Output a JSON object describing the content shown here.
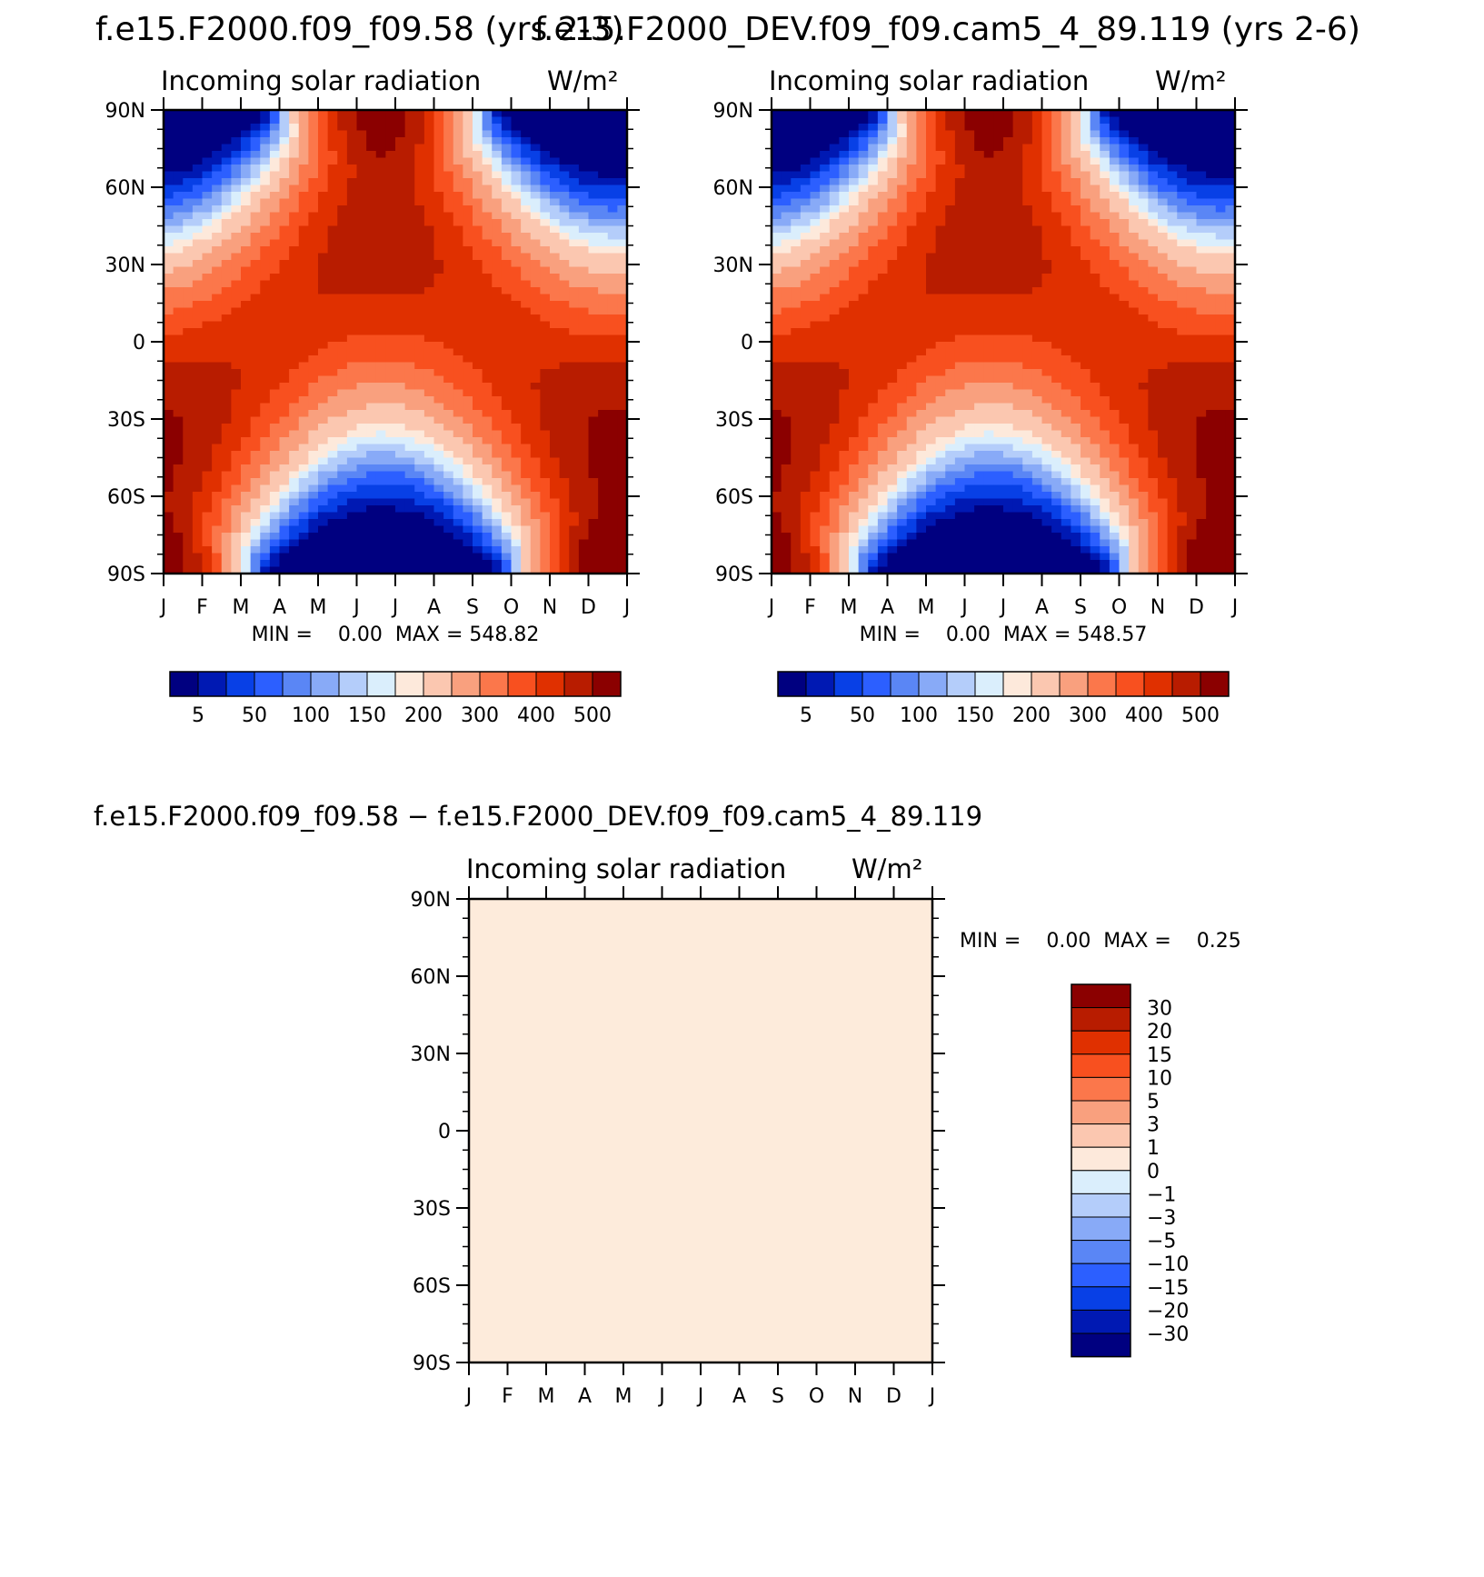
{
  "figure": {
    "title_left": "f.e15.F2000.f09_f09.58 (yrs 2-3)",
    "title_right": "f.e15.F2000_DEV.f09_f09.cam5_4_89.119 (yrs 2-6)",
    "title_diff": "f.e15.F2000.f09_f09.58 − f.e15.F2000_DEV.f09_f09.cam5_4_89.119"
  },
  "chart_data": [
    {
      "id": "panel-1",
      "type": "heatmap",
      "subtitle": "Incoming solar radiation",
      "units": "W/m²",
      "y_tick_labels": [
        "90N",
        "60N",
        "30N",
        "0",
        "30S",
        "60S",
        "90S"
      ],
      "y_ticks_deg": [
        90,
        60,
        30,
        0,
        -30,
        -60,
        -90
      ],
      "x_tick_labels": [
        "J",
        "F",
        "M",
        "A",
        "M",
        "J",
        "J",
        "A",
        "S",
        "O",
        "N",
        "D",
        "J"
      ],
      "stats_text": "MIN =    0.00  MAX = 548.82",
      "min": 0.0,
      "max": 548.82,
      "colorbar_orientation": "horizontal",
      "contour_levels": [
        5,
        25,
        50,
        75,
        100,
        125,
        150,
        175,
        200,
        250,
        300,
        350,
        400,
        450,
        500
      ],
      "colorbar_labels": [
        "5",
        "50",
        "100",
        "150",
        "200",
        "300",
        "400",
        "500"
      ],
      "colorbar_label_indices": [
        0,
        2,
        4,
        6,
        8,
        10,
        12,
        14
      ],
      "colors": [
        "#000080",
        "#0019b3",
        "#0840e6",
        "#2c5fff",
        "#5a86f5",
        "#88aaf7",
        "#b4cdfa",
        "#daeefc",
        "#fde9db",
        "#fbc7b0",
        "#f9a07e",
        "#fb774b",
        "#f8501f",
        "#e03000",
        "#b81c00",
        "#8b0000"
      ],
      "hidden_labels": [
        "25",
        "75",
        "125",
        "175",
        "250",
        "350",
        "450"
      ]
    },
    {
      "id": "panel-2",
      "type": "heatmap",
      "subtitle": "Incoming solar radiation",
      "units": "W/m²",
      "y_tick_labels": [
        "90N",
        "60N",
        "30N",
        "0",
        "30S",
        "60S",
        "90S"
      ],
      "y_ticks_deg": [
        90,
        60,
        30,
        0,
        -30,
        -60,
        -90
      ],
      "x_tick_labels": [
        "J",
        "F",
        "M",
        "A",
        "M",
        "J",
        "J",
        "A",
        "S",
        "O",
        "N",
        "D",
        "J"
      ],
      "stats_text": "MIN =    0.00  MAX = 548.57",
      "min": 0.0,
      "max": 548.57,
      "colorbar_orientation": "horizontal",
      "contour_levels": [
        5,
        25,
        50,
        75,
        100,
        125,
        150,
        175,
        200,
        250,
        300,
        350,
        400,
        450,
        500
      ],
      "colorbar_labels": [
        "5",
        "50",
        "100",
        "150",
        "200",
        "300",
        "400",
        "500"
      ],
      "colorbar_label_indices": [
        0,
        2,
        4,
        6,
        8,
        10,
        12,
        14
      ],
      "colors": [
        "#000080",
        "#0019b3",
        "#0840e6",
        "#2c5fff",
        "#5a86f5",
        "#88aaf7",
        "#b4cdfa",
        "#daeefc",
        "#fde9db",
        "#fbc7b0",
        "#f9a07e",
        "#fb774b",
        "#f8501f",
        "#e03000",
        "#b81c00",
        "#8b0000"
      ],
      "hidden_labels": [
        "25",
        "75",
        "125",
        "175",
        "250",
        "350",
        "450"
      ]
    },
    {
      "id": "panel-diff",
      "type": "heatmap",
      "subtitle": "Incoming solar radiation",
      "units": "W/m²",
      "y_tick_labels": [
        "90N",
        "60N",
        "30N",
        "0",
        "30S",
        "60S",
        "90S"
      ],
      "y_ticks_deg": [
        90,
        60,
        30,
        0,
        -30,
        -60,
        -90
      ],
      "x_tick_labels": [
        "J",
        "F",
        "M",
        "A",
        "M",
        "J",
        "J",
        "A",
        "S",
        "O",
        "N",
        "D",
        "J"
      ],
      "stats_text": "MIN =    0.00  MAX =    0.25",
      "min": 0.0,
      "max": 0.25,
      "colorbar_orientation": "vertical",
      "contour_levels": [
        -30,
        -20,
        -15,
        -10,
        -5,
        -3,
        -1,
        0,
        1,
        3,
        5,
        10,
        15,
        20,
        30
      ],
      "colorbar_labels": [
        "−30",
        "−20",
        "−15",
        "−10",
        "−5",
        "−3",
        "−1",
        "0",
        "1",
        "3",
        "5",
        "10",
        "15",
        "20",
        "30"
      ],
      "colors": [
        "#000080",
        "#0019b3",
        "#0840e6",
        "#2c5fff",
        "#5a86f5",
        "#88aaf7",
        "#b4cdfa",
        "#daeefc",
        "#fde9db",
        "#fbc7b0",
        "#f9a07e",
        "#fb774b",
        "#f8501f",
        "#e03000",
        "#b81c00",
        "#8b0000"
      ],
      "field_fill": "#fdebdb"
    }
  ]
}
